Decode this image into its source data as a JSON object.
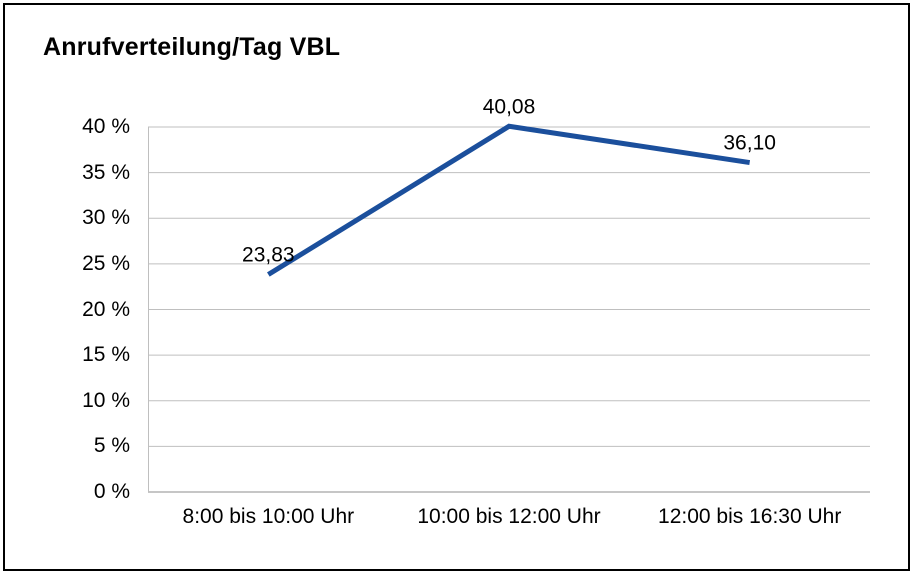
{
  "chart": {
    "title": "Anrufverteilung/Tag VBL"
  },
  "chart_data": {
    "type": "line",
    "title": "Anrufverteilung/Tag VBL",
    "categories": [
      "8:00 bis 10:00 Uhr",
      "10:00 bis 12:00 Uhr",
      "12:00 bis 16:30 Uhr"
    ],
    "values": [
      23.83,
      40.08,
      36.1
    ],
    "point_labels": [
      "23,83",
      "40,08",
      "36,10"
    ],
    "xlabel": "",
    "ylabel": "",
    "ylim": [
      0,
      40
    ],
    "yticks": [
      {
        "value": 40,
        "label": "40 %"
      },
      {
        "value": 35,
        "label": "35 %"
      },
      {
        "value": 30,
        "label": "30 %"
      },
      {
        "value": 25,
        "label": "25 %"
      },
      {
        "value": 20,
        "label": "20 %"
      },
      {
        "value": 15,
        "label": "15 %"
      },
      {
        "value": 10,
        "label": "10 %"
      },
      {
        "value": 5,
        "label": "5 %"
      },
      {
        "value": 0,
        "label": "0 %"
      }
    ],
    "grid": true,
    "legend": "none",
    "line_color": "#1B4F9C",
    "grid_color": "#BFBFBF",
    "axis_color": "#8C8C8C"
  }
}
